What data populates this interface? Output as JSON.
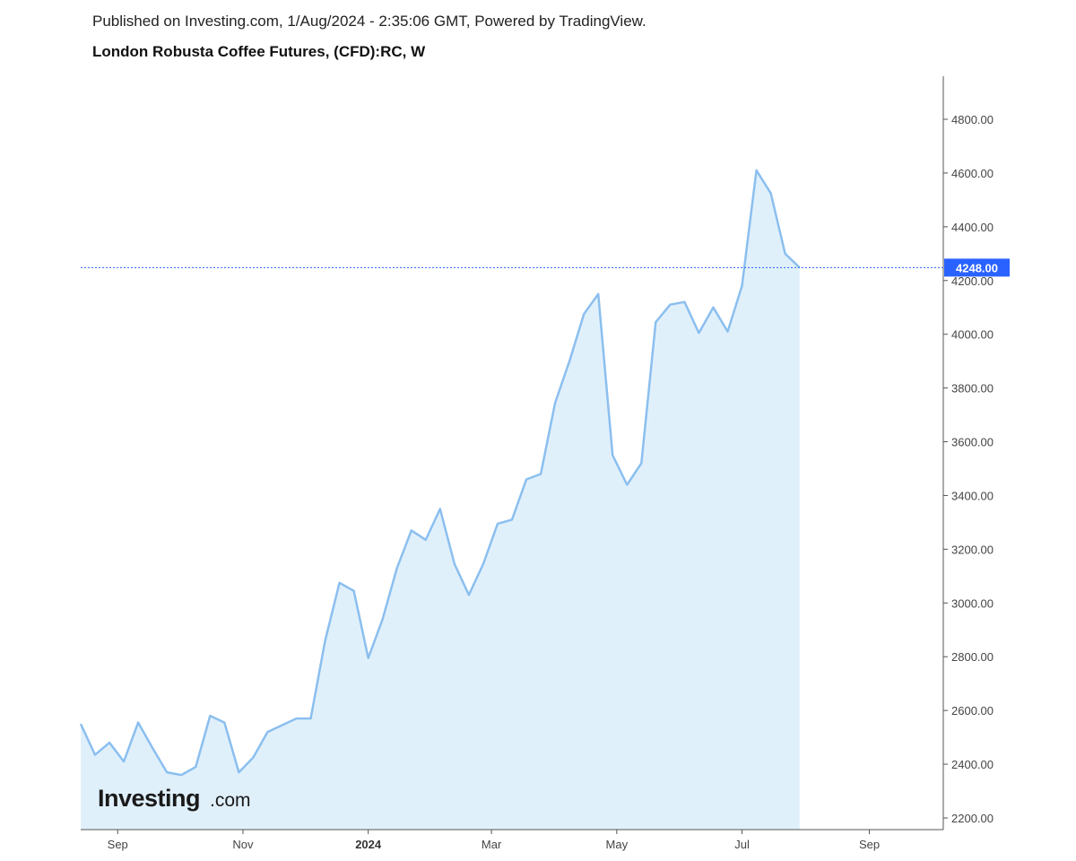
{
  "header": {
    "published": "Published on Investing.com, 1/Aug/2024 - 2:35:06 GMT, Powered by TradingView.",
    "title": "London Robusta Coffee Futures, (CFD):RC, W"
  },
  "logo": {
    "main": "Investing",
    "sub": ".com"
  },
  "colors": {
    "line": "#8bbfef",
    "area": "#e0f0fb",
    "price_line": "#2962ff",
    "badge": "#2962ff",
    "axis": "#555555"
  },
  "chart_data": {
    "type": "area",
    "title": "London Robusta Coffee Futures, (CFD):RC, W",
    "xlabel": "",
    "ylabel": "",
    "ylim": [
      2200,
      4800
    ],
    "x_range": [
      "2023-08-14",
      "2024-10-07"
    ],
    "y_ticks": [
      "2200.00",
      "2400.00",
      "2600.00",
      "2800.00",
      "3000.00",
      "3200.00",
      "3400.00",
      "3600.00",
      "3800.00",
      "4000.00",
      "4200.00",
      "4400.00",
      "4600.00",
      "4800.00"
    ],
    "x_ticks": [
      {
        "label": "Sep",
        "date": "2023-09-01",
        "bold": false
      },
      {
        "label": "Nov",
        "date": "2023-11-01",
        "bold": false
      },
      {
        "label": "2024",
        "date": "2024-01-01",
        "bold": true
      },
      {
        "label": "Mar",
        "date": "2024-03-01",
        "bold": false
      },
      {
        "label": "May",
        "date": "2024-05-01",
        "bold": false
      },
      {
        "label": "Jul",
        "date": "2024-07-01",
        "bold": false
      },
      {
        "label": "Sep",
        "date": "2024-09-01",
        "bold": false
      }
    ],
    "current_price": 4248,
    "current_price_label": "4248.00",
    "grid": false,
    "series": [
      {
        "x": [
          "2023-08-14",
          "2023-08-21",
          "2023-08-28",
          "2023-09-04",
          "2023-09-11",
          "2023-09-18",
          "2023-09-25",
          "2023-10-02",
          "2023-10-09",
          "2023-10-16",
          "2023-10-23",
          "2023-10-30",
          "2023-11-06",
          "2023-11-13",
          "2023-11-20",
          "2023-11-27",
          "2023-12-04",
          "2023-12-11",
          "2023-12-18",
          "2023-12-25",
          "2024-01-01",
          "2024-01-08",
          "2024-01-15",
          "2024-01-22",
          "2024-01-29",
          "2024-02-05",
          "2024-02-12",
          "2024-02-19",
          "2024-02-26",
          "2024-03-04",
          "2024-03-11",
          "2024-03-18",
          "2024-03-25",
          "2024-04-01",
          "2024-04-08",
          "2024-04-15",
          "2024-04-22",
          "2024-04-29",
          "2024-05-06",
          "2024-05-13",
          "2024-05-20",
          "2024-05-27",
          "2024-06-03",
          "2024-06-10",
          "2024-06-17",
          "2024-06-24",
          "2024-07-01",
          "2024-07-08",
          "2024-07-15",
          "2024-07-22",
          "2024-07-29"
        ],
        "y": [
          2550,
          2435,
          2480,
          2410,
          2555,
          2460,
          2370,
          2360,
          2390,
          2580,
          2555,
          2370,
          2425,
          2520,
          2545,
          2570,
          2570,
          2860,
          3075,
          3045,
          2795,
          2940,
          3130,
          3270,
          3235,
          3350,
          3145,
          3030,
          3145,
          3295,
          3310,
          3460,
          3480,
          3745,
          3900,
          4075,
          4150,
          3550,
          3440,
          3520,
          4045,
          4110,
          4120,
          4005,
          4100,
          4010,
          4180,
          4610,
          4525,
          4300,
          4248
        ]
      }
    ]
  }
}
